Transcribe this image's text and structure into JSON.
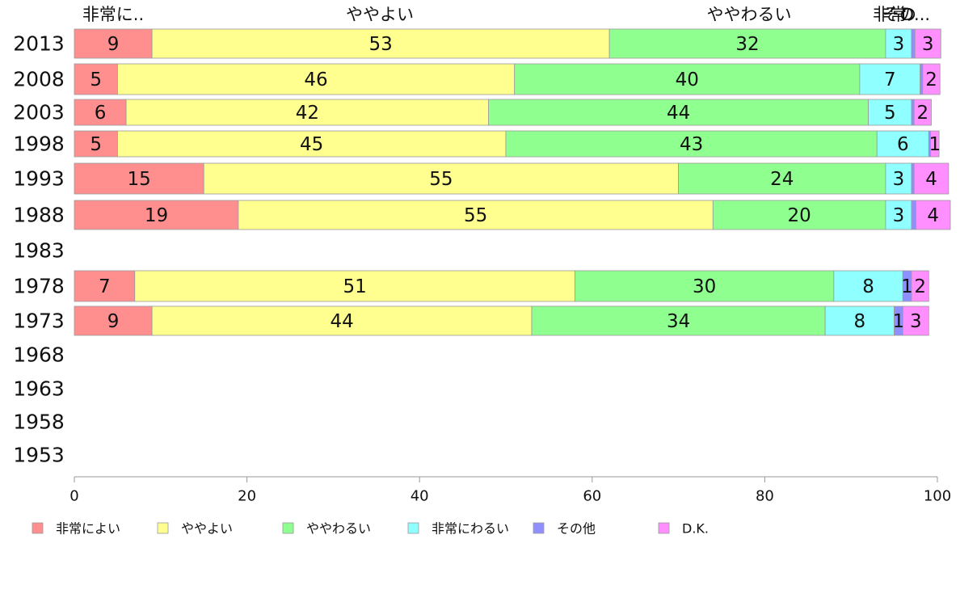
{
  "chart_data": {
    "type": "bar",
    "orientation": "horizontal",
    "stacked": true,
    "categories": [
      "2013",
      "2008",
      "2003",
      "1998",
      "1993",
      "1988",
      "1983",
      "1978",
      "1973",
      "1968",
      "1963",
      "1958",
      "1953"
    ],
    "series": [
      {
        "name": "非常によい",
        "color": "#ff8f8f",
        "values": [
          9,
          5,
          6,
          5,
          15,
          19,
          null,
          7,
          9,
          null,
          null,
          null,
          null
        ]
      },
      {
        "name": "ややよい",
        "color": "#ffff8f",
        "values": [
          53,
          46,
          42,
          45,
          55,
          55,
          null,
          51,
          44,
          null,
          null,
          null,
          null
        ]
      },
      {
        "name": "ややわるい",
        "color": "#8fff8f",
        "values": [
          32,
          40,
          44,
          43,
          24,
          20,
          null,
          30,
          34,
          null,
          null,
          null,
          null
        ]
      },
      {
        "name": "非常にわるい",
        "color": "#8fffff",
        "values": [
          3,
          7,
          5,
          6,
          3,
          3,
          null,
          8,
          8,
          null,
          null,
          null,
          null
        ]
      },
      {
        "name": "その他",
        "color": "#8f8fff",
        "values": [
          0.4,
          0.3,
          0.3,
          0.2,
          0.3,
          0.5,
          null,
          1,
          1,
          null,
          null,
          null,
          null
        ]
      },
      {
        "name": "D.K.",
        "color": "#ff8fff",
        "values": [
          3,
          2,
          2,
          1,
          4,
          4,
          null,
          2,
          3,
          null,
          null,
          null,
          null
        ]
      }
    ],
    "segment_labels": [
      [
        "9",
        "53",
        "32",
        "3",
        "",
        "3"
      ],
      [
        "5",
        "46",
        "40",
        "7",
        "",
        "2"
      ],
      [
        "6",
        "42",
        "44",
        "5",
        "",
        "2"
      ],
      [
        "5",
        "45",
        "43",
        "6",
        "",
        "1"
      ],
      [
        "15",
        "55",
        "24",
        "3",
        "",
        "4"
      ],
      [
        "19",
        "55",
        "20",
        "3",
        "",
        "4"
      ],
      [
        "",
        "",
        "",
        "",
        "",
        ""
      ],
      [
        "7",
        "51",
        "30",
        "8",
        "1",
        "2"
      ],
      [
        "9",
        "44",
        "34",
        "8",
        "1",
        "3"
      ],
      [
        "",
        "",
        "",
        "",
        "",
        ""
      ],
      [
        "",
        "",
        "",
        "",
        "",
        ""
      ],
      [
        "",
        "",
        "",
        "",
        "",
        ""
      ],
      [
        "",
        "",
        "",
        "",
        "",
        ""
      ]
    ],
    "top_labels": [
      "非常に..",
      "ややよい",
      "ややわるい",
      "非常",
      "その",
      "D..."
    ],
    "xlim": [
      0,
      100
    ],
    "xticks": [
      "0",
      "20",
      "40",
      "60",
      "80",
      "100"
    ],
    "legend_position": "bottom",
    "grid": false
  }
}
